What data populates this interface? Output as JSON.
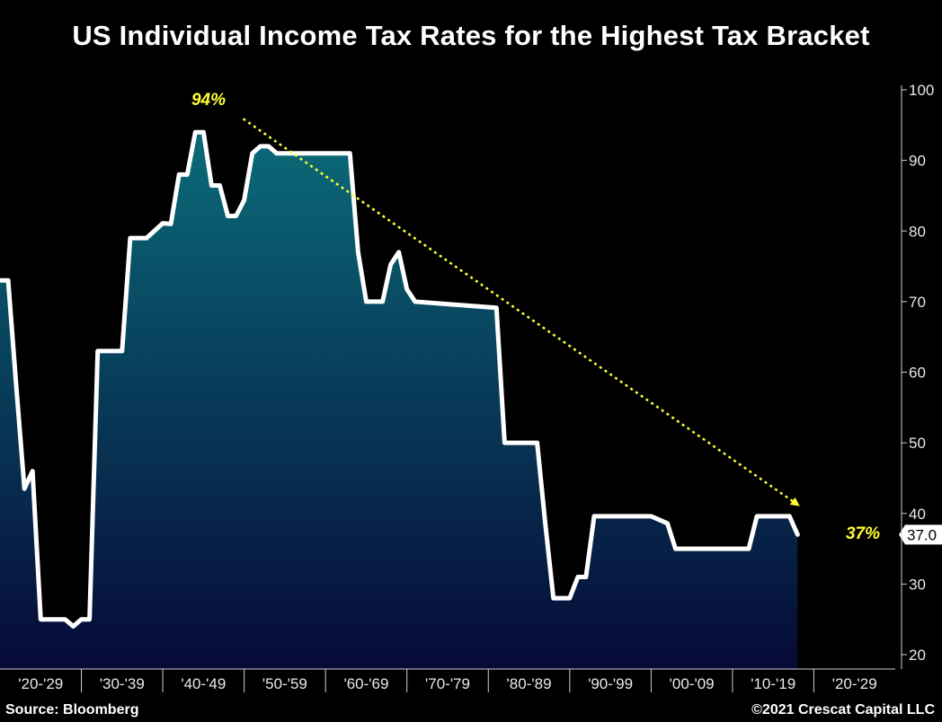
{
  "chart_data": {
    "type": "area",
    "title": "US Individual Income Tax Rates for the Highest Tax Bracket",
    "x_categories": [
      "'20-'29",
      "'30-'39",
      "'40-'49",
      "'50-'59",
      "'60-'69",
      "'70-'79",
      "'80-'89",
      "'90-'99",
      "'00-'09",
      "'10-'19",
      "'20-'29"
    ],
    "y_ticks": [
      20,
      30,
      40,
      50,
      60,
      70,
      80,
      90,
      100
    ],
    "ylim": [
      20,
      100
    ],
    "xlim": [
      1920,
      2030
    ],
    "y_axis_position": "right",
    "grid": false,
    "series": [
      {
        "values": [
          [
            1920,
            73
          ],
          [
            1921,
            73
          ],
          [
            1922,
            58
          ],
          [
            1923,
            43.5
          ],
          [
            1924,
            46
          ],
          [
            1925,
            25
          ],
          [
            1926,
            25
          ],
          [
            1928,
            25
          ],
          [
            1929,
            24
          ],
          [
            1930,
            25
          ],
          [
            1931,
            25
          ],
          [
            1932,
            63
          ],
          [
            1934,
            63
          ],
          [
            1935,
            63
          ],
          [
            1936,
            79
          ],
          [
            1938,
            79
          ],
          [
            1940,
            81.1
          ],
          [
            1941,
            81
          ],
          [
            1942,
            88
          ],
          [
            1943,
            88
          ],
          [
            1944,
            94
          ],
          [
            1945,
            94
          ],
          [
            1946,
            86.45
          ],
          [
            1947,
            86.45
          ],
          [
            1948,
            82.13
          ],
          [
            1949,
            82.13
          ],
          [
            1950,
            84.36
          ],
          [
            1951,
            91
          ],
          [
            1952,
            92
          ],
          [
            1953,
            92
          ],
          [
            1954,
            91
          ],
          [
            1963,
            91
          ],
          [
            1964,
            77
          ],
          [
            1965,
            70
          ],
          [
            1967,
            70
          ],
          [
            1968,
            75.25
          ],
          [
            1969,
            77
          ],
          [
            1970,
            71.75
          ],
          [
            1971,
            70
          ],
          [
            1981,
            69.13
          ],
          [
            1982,
            50
          ],
          [
            1986,
            50
          ],
          [
            1987,
            38.5
          ],
          [
            1988,
            28
          ],
          [
            1990,
            28
          ],
          [
            1991,
            31
          ],
          [
            1992,
            31
          ],
          [
            1993,
            39.6
          ],
          [
            2000,
            39.6
          ],
          [
            2001,
            39.1
          ],
          [
            2002,
            38.6
          ],
          [
            2003,
            35
          ],
          [
            2012,
            35
          ],
          [
            2013,
            39.6
          ],
          [
            2017,
            39.6
          ],
          [
            2018,
            37
          ]
        ],
        "last_value_label": "37.0"
      }
    ],
    "annotations": [
      {
        "text": "94%"
      },
      {
        "text": "37%"
      }
    ],
    "trend_arrow": {
      "from": [
        1949,
        95
      ],
      "to": [
        2018,
        41
      ]
    }
  },
  "source": "Source: Bloomberg",
  "copyright": "©2021 Crescat Capital LLC",
  "colors": {
    "background": "#000000",
    "line": "#ffffff",
    "fill_top": "#0a6a78",
    "fill_bottom": "#060a36",
    "trend": "#ffff33",
    "axis": "#cfcfcf",
    "annotation": "#ffff33"
  }
}
